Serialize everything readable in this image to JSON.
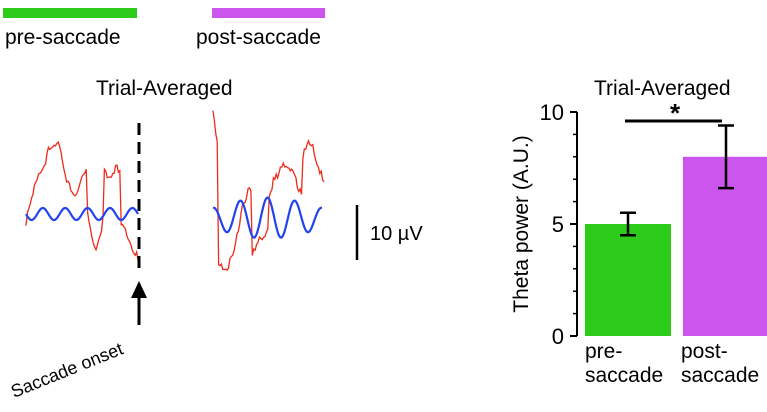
{
  "legend": {
    "pre": {
      "label": "pre-saccade",
      "color": "#2ecc1a"
    },
    "post": {
      "label": "post-saccade",
      "color": "#cc55ee"
    }
  },
  "left_panel": {
    "title": "Trial-Averaged",
    "scale_bar_label": "10 µV",
    "onset_label": "Saccade onset",
    "raw_trace_color": "#ee2a1a",
    "theta_trace_color": "#2244ee"
  },
  "chart_data": {
    "type": "bar",
    "title": "Trial-Averaged",
    "ylabel": "Theta power (A.U.)",
    "xlabel": "",
    "categories": [
      "pre-saccade",
      "post-saccade"
    ],
    "category_lines": [
      [
        "pre-",
        "saccade"
      ],
      [
        "post-",
        "saccade"
      ]
    ],
    "values": [
      5.0,
      8.0
    ],
    "error_low": [
      4.5,
      6.6
    ],
    "error_high": [
      5.5,
      9.4
    ],
    "colors": [
      "#2ecc1a",
      "#cc55ee"
    ],
    "ylim": [
      0,
      10
    ],
    "yticks": [
      "0",
      "5",
      "10"
    ],
    "significance": "*",
    "grid": false,
    "legend": "top-left"
  }
}
